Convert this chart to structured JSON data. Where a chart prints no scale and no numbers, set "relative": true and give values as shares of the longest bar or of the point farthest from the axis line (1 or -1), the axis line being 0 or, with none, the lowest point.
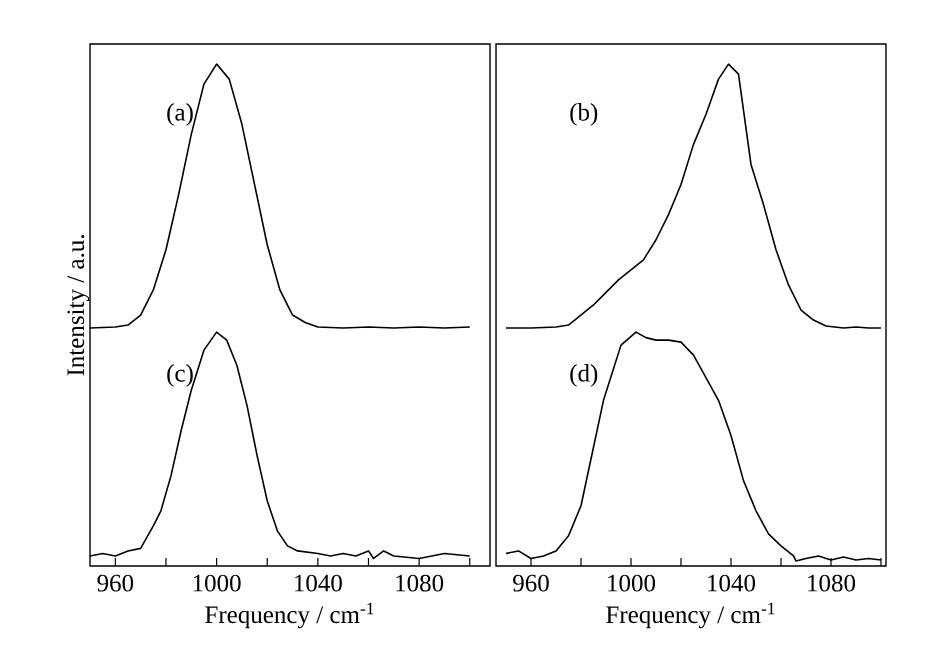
{
  "chart_data": [
    {
      "type": "line",
      "relative": true,
      "xlabel": "Frequency / cm$^{-1}$",
      "ylabel": "Intensity / a.u.",
      "xlim": [
        950,
        1108
      ],
      "xticks": [
        960,
        {
          "value": 980,
          "label": null
        },
        1000,
        {
          "value": 1020,
          "label": null
        },
        1040,
        {
          "value": 1060,
          "label": null
        },
        1080,
        {
          "value": 1100,
          "label": null
        }
      ],
      "tick_labels": "x",
      "series": [
        {
          "color": "#000000",
          "x": [
            950,
            960,
            965,
            970,
            975,
            980,
            985,
            990,
            995,
            1000,
            1005,
            1010,
            1015,
            1020,
            1025,
            1030,
            1035,
            1040,
            1050,
            1060,
            1070,
            1080,
            1090,
            1100
          ],
          "values": [
            0.474,
            0.476,
            0.48,
            0.5,
            0.55,
            0.63,
            0.74,
            0.86,
            0.96,
            1.0,
            0.97,
            0.88,
            0.76,
            0.64,
            0.55,
            0.5,
            0.485,
            0.476,
            0.474,
            0.476,
            0.474,
            0.476,
            0.474,
            0.476
          ]
        },
        {
          "color": "#000000",
          "x": [
            950,
            955,
            960,
            965,
            970,
            975,
            978,
            982,
            986,
            990,
            995,
            1000,
            1004,
            1008,
            1012,
            1016,
            1020,
            1024,
            1028,
            1032,
            1040,
            1045,
            1050,
            1055,
            1060,
            1062,
            1066,
            1070,
            1080,
            1090,
            1100
          ],
          "values": [
            0.02,
            0.025,
            0.02,
            0.03,
            0.035,
            0.08,
            0.11,
            0.18,
            0.27,
            0.35,
            0.43,
            0.466,
            0.45,
            0.4,
            0.32,
            0.22,
            0.13,
            0.07,
            0.04,
            0.03,
            0.025,
            0.02,
            0.025,
            0.02,
            0.03,
            0.015,
            0.03,
            0.02,
            0.015,
            0.025,
            0.02
          ]
        }
      ],
      "annotations": [
        "(a)",
        "(c)"
      ]
    },
    {
      "type": "line",
      "relative": true,
      "xlabel": "Frequency / cm$^{-1}$",
      "xlim": [
        946,
        1102
      ],
      "xticks": [
        960,
        {
          "value": 980,
          "label": null
        },
        1000,
        {
          "value": 1020,
          "label": null
        },
        1040,
        {
          "value": 1060,
          "label": null
        },
        1080,
        {
          "value": 1100,
          "label": null
        }
      ],
      "tick_labels": "x",
      "series": [
        {
          "color": "#000000",
          "x": [
            950,
            960,
            970,
            975,
            980,
            985,
            990,
            995,
            1000,
            1005,
            1010,
            1015,
            1020,
            1025,
            1030,
            1035,
            1039,
            1043,
            1048,
            1053,
            1058,
            1063,
            1068,
            1073,
            1078,
            1085,
            1090,
            1095,
            1100
          ],
          "values": [
            0.474,
            0.474,
            0.476,
            0.48,
            0.5,
            0.52,
            0.545,
            0.57,
            0.59,
            0.61,
            0.65,
            0.7,
            0.76,
            0.84,
            0.9,
            0.97,
            1.0,
            0.98,
            0.8,
            0.72,
            0.63,
            0.56,
            0.51,
            0.49,
            0.478,
            0.474,
            0.476,
            0.474,
            0.474
          ]
        },
        {
          "color": "#000000",
          "x": [
            950,
            955,
            960,
            965,
            970,
            975,
            980,
            989,
            996,
            1002,
            1006,
            1010,
            1015,
            1020,
            1025,
            1035,
            1040,
            1045,
            1050,
            1055,
            1060,
            1065,
            1066,
            1070,
            1075,
            1080,
            1085,
            1090,
            1095,
            1100
          ],
          "values": [
            0.025,
            0.03,
            0.015,
            0.02,
            0.03,
            0.06,
            0.12,
            0.33,
            0.44,
            0.466,
            0.455,
            0.45,
            0.45,
            0.446,
            0.42,
            0.33,
            0.26,
            0.17,
            0.11,
            0.064,
            0.04,
            0.02,
            0.01,
            0.015,
            0.02,
            0.012,
            0.018,
            0.012,
            0.015,
            0.012
          ]
        }
      ],
      "annotations": [
        "(b)",
        "(d)"
      ]
    }
  ]
}
